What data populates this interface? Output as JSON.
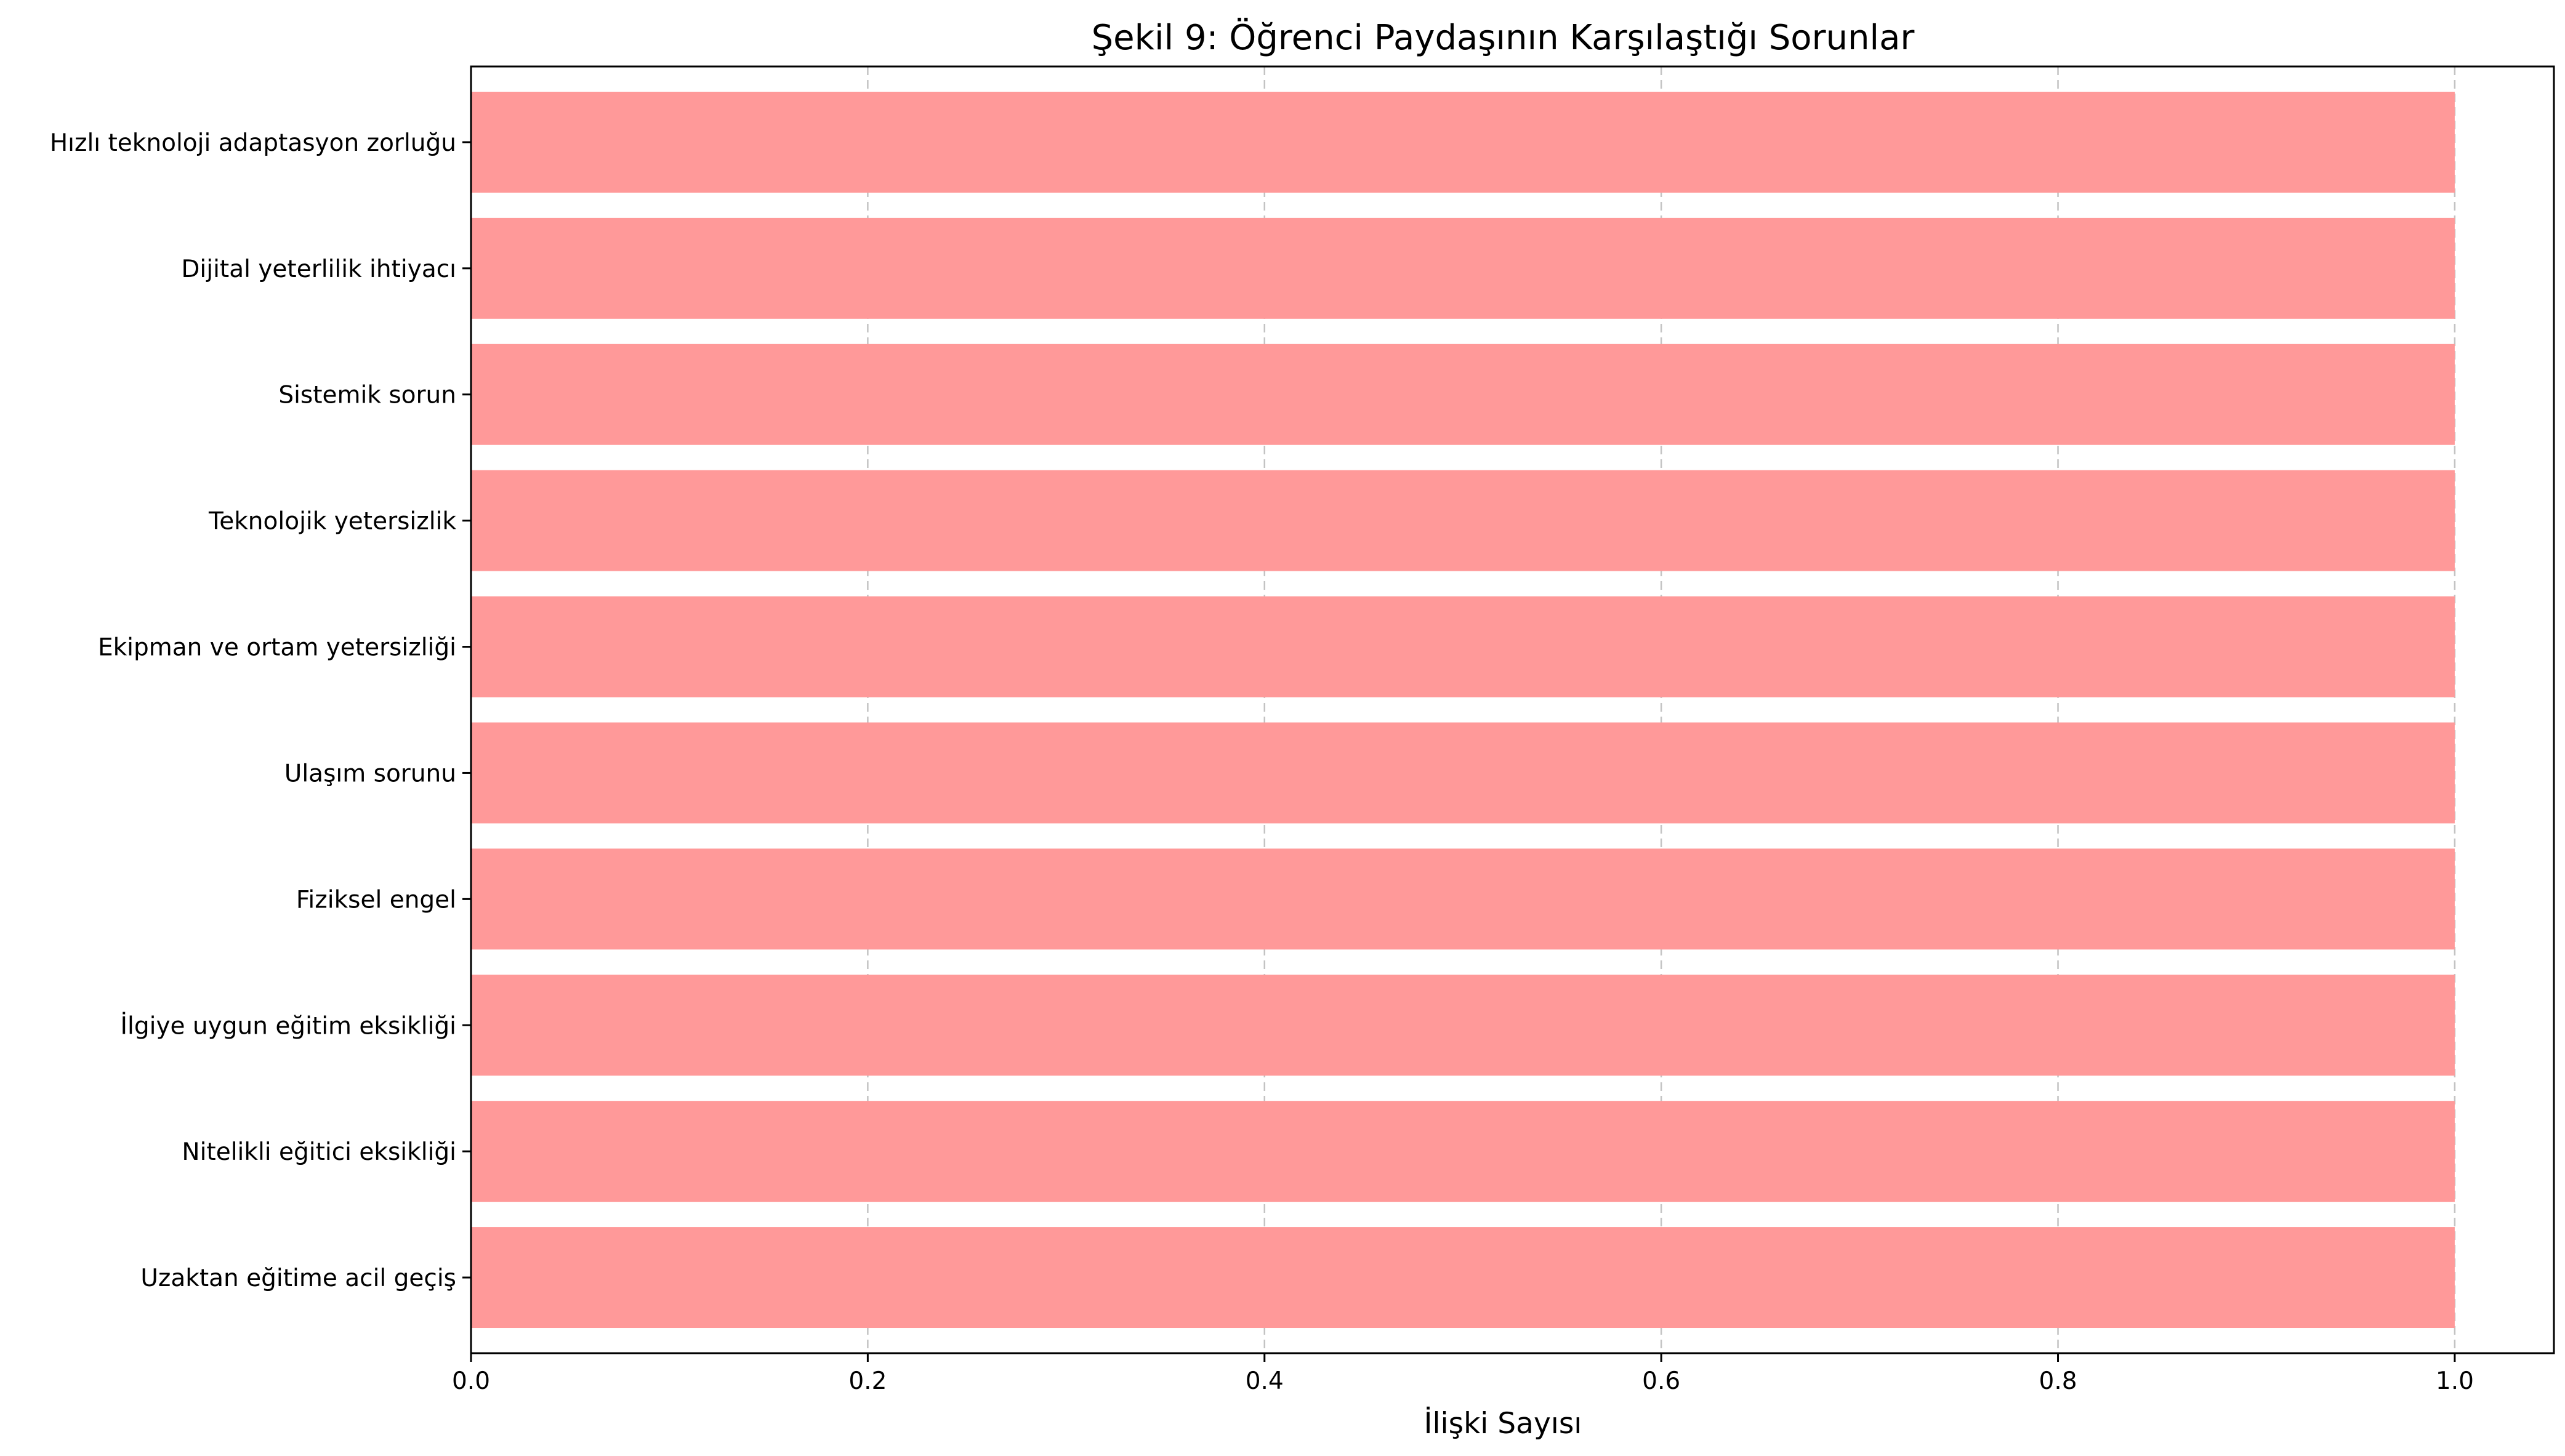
{
  "chart_data": {
    "type": "bar",
    "orientation": "horizontal",
    "title": "Şekil 9: Öğrenci Paydaşının Karşılaştığı Sorunlar",
    "xlabel": "İlişki Sayısı",
    "ylabel": "",
    "xlim": [
      0,
      1.05
    ],
    "xticks": [
      "0.0",
      "0.2",
      "0.4",
      "0.6",
      "0.8",
      "1.0"
    ],
    "grid": "x",
    "bar_color": "#ff9999",
    "categories": [
      "Hızlı teknoloji adaptasyon zorluğu",
      "Dijital yeterlilik ihtiyacı",
      "Sistemik sorun",
      "Teknolojik yetersizlik",
      "Ekipman ve ortam yetersizliği",
      "Ulaşım sorunu",
      "Fiziksel engel",
      "İlgiye uygun eğitim eksikliği",
      "Nitelikli eğitici eksikliği",
      "Uzaktan eğitime acil geçiş"
    ],
    "values": [
      1,
      1,
      1,
      1,
      1,
      1,
      1,
      1,
      1,
      1
    ]
  }
}
